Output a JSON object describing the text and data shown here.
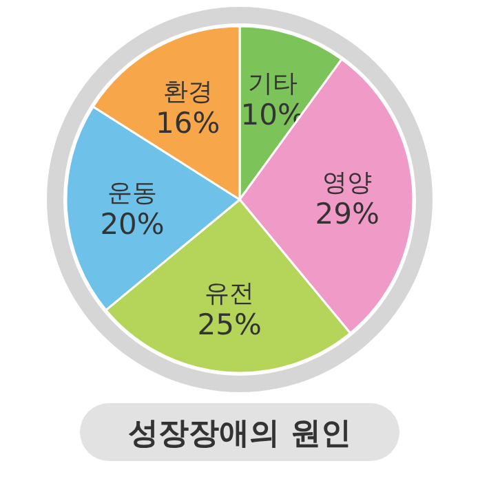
{
  "chart_data": {
    "type": "pie",
    "title": "성장장애의 원인",
    "categories": [
      "기타",
      "영양",
      "유전",
      "운동",
      "환경"
    ],
    "values": [
      10,
      29,
      25,
      20,
      16
    ],
    "value_labels": [
      "10%",
      "29%",
      "25%",
      "20%",
      "16%"
    ],
    "colors": [
      "#7cc35a",
      "#f09ac8",
      "#b5d55a",
      "#6ec1e8",
      "#f7a64a"
    ]
  }
}
